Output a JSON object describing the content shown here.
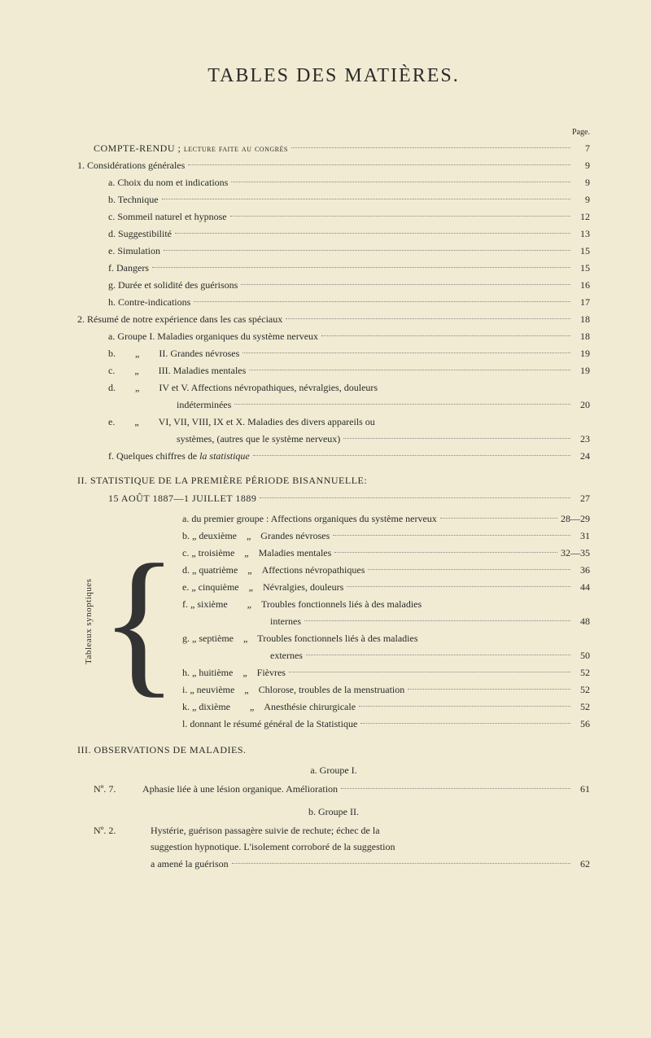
{
  "title": "TABLES DES MATIÈRES.",
  "pageLabel": "Page.",
  "compteRendu": {
    "label": "COMPTE-RENDU ; lecture faite au congrès",
    "page": "7"
  },
  "section1": {
    "heading": "1. Considérations générales",
    "headingPage": "9",
    "items": [
      {
        "label": "a. Choix du nom et indications",
        "page": "9"
      },
      {
        "label": "b. Technique",
        "page": "9"
      },
      {
        "label": "c. Sommeil naturel et hypnose",
        "page": "12"
      },
      {
        "label": "d. Suggestibilité",
        "page": "13"
      },
      {
        "label": "e. Simulation",
        "page": "15"
      },
      {
        "label": "f. Dangers",
        "page": "15"
      },
      {
        "label": "g. Durée et solidité des guérisons",
        "page": "16"
      },
      {
        "label": "h. Contre-indications",
        "page": "17"
      }
    ]
  },
  "section2": {
    "heading": "2. Résumé de notre expérience dans les cas spéciaux",
    "headingPage": "18",
    "items": [
      {
        "label": "a. Groupe I. Maladies organiques du système nerveux",
        "page": "18"
      },
      {
        "label": "b.  „  II. Grandes névroses",
        "page": "19"
      },
      {
        "label": "c.  „  III. Maladies mentales",
        "page": "19"
      },
      {
        "label": "d.  „  IV et V. Affections névropathiques, névralgies, douleurs",
        "page": ""
      },
      {
        "label": "       indéterminées",
        "page": "20",
        "cont": true
      },
      {
        "label": "e.  „  VI, VII, VIII, IX et X. Maladies des divers appareils ou",
        "page": ""
      },
      {
        "label": "       systèmes, (autres que le système nerveux)",
        "page": "23",
        "cont": true
      },
      {
        "label": "f. Quelques chiffres de la statistique",
        "page": "24",
        "italic": true
      }
    ]
  },
  "sectionII": {
    "heading": "II. STATISTIQUE DE LA PREMIÈRE PÉRIODE BISANNUELLE:",
    "sub": "15 AOÛT 1887—1 JUILLET 1889",
    "subPage": "27",
    "verticalLabel": "Tableaux synoptiques",
    "items": [
      {
        "label": "a. du premier groupe : Affections organiques du système nerveux",
        "page": "28—29"
      },
      {
        "label": "b. „ deuxième „ Grandes névroses",
        "page": "31"
      },
      {
        "label": "c. „ troisième „ Maladies mentales",
        "page": "32—35"
      },
      {
        "label": "d. „ quatrième „ Affections névropathiques",
        "page": "36"
      },
      {
        "label": "e. „ cinquième „ Névralgies, douleurs",
        "page": "44"
      },
      {
        "label": "f. „ sixième  „ Troubles fonctionnels liés à des maladies",
        "page": ""
      },
      {
        "label": "         internes",
        "page": "48",
        "cont": true
      },
      {
        "label": "g. „ septième „ Troubles fonctionnels liés à des maladies",
        "page": ""
      },
      {
        "label": "         externes",
        "page": "50",
        "cont": true
      },
      {
        "label": "h. „ huitième „ Fièvres",
        "page": "52"
      },
      {
        "label": "i. „ neuvième „ Chlorose, troubles de la menstruation",
        "page": "52"
      },
      {
        "label": "k. „ dixième  „ Anesthésie chirurgicale",
        "page": "52"
      },
      {
        "label": "l. donnant le résumé général de la Statistique",
        "page": "56"
      }
    ]
  },
  "sectionIII": {
    "heading": "III. OBSERVATIONS DE MALADIES.",
    "groupA": {
      "heading": "a. Groupe I.",
      "item": {
        "num": "Nº. 7.",
        "text": "Aphasie liée à une lésion organique. Amélioration",
        "page": "61"
      }
    },
    "groupB": {
      "heading": "b. Groupe II.",
      "item": {
        "num": "Nº. 2.",
        "line1": "Hystérie, guérison passagère suivie de rechute; échec de la",
        "line2": "suggestion hypnotique. L'isolement corroboré de la suggestion",
        "line3": "a amené la guérison",
        "page": "62"
      }
    }
  }
}
